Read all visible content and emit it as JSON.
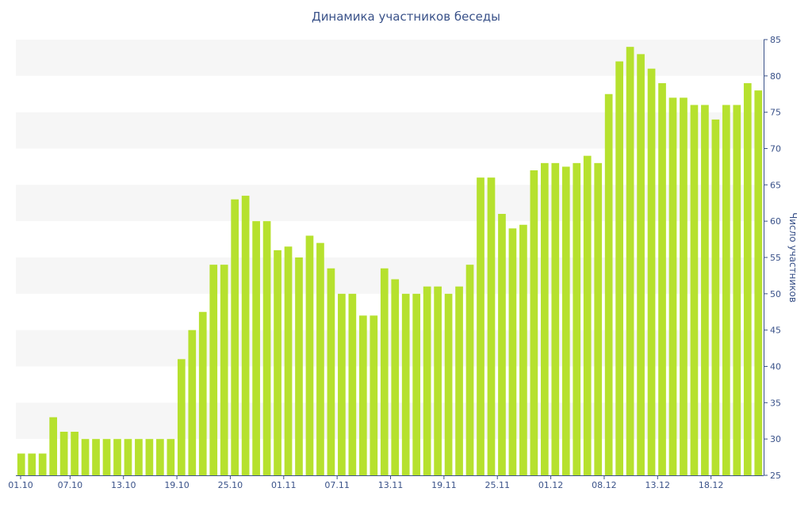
{
  "colors": {
    "bar": "#b6e12e",
    "band": "#f6f6f6",
    "axis": "#3a5289",
    "text": "#3a5289"
  },
  "chart_data": {
    "type": "bar",
    "title": "Динамика участников беседы",
    "xlabel": "",
    "ylabel": "Число участников",
    "ylim": [
      25,
      85
    ],
    "y_ticks": [
      25,
      30,
      35,
      40,
      45,
      50,
      55,
      60,
      65,
      70,
      75,
      80,
      85
    ],
    "y_axis_side": "right",
    "grid": "alternating horizontal bands",
    "x_tick_labels": [
      "01.10",
      "07.10",
      "13.10",
      "19.10",
      "25.10",
      "01.11",
      "07.11",
      "13.11",
      "19.11",
      "25.11",
      "01.12",
      "08.12",
      "13.12",
      "18.12"
    ],
    "x_tick_positions": [
      0,
      5,
      10,
      15,
      20,
      25,
      30,
      35,
      40,
      45,
      50,
      55,
      60,
      65
    ],
    "values": [
      28,
      28,
      28,
      33,
      31,
      31,
      30,
      30,
      30,
      30,
      30,
      30,
      30,
      30,
      30,
      41,
      45,
      47.5,
      54,
      54,
      63,
      63.5,
      60,
      60,
      56,
      56.5,
      55,
      58,
      57,
      53.5,
      50,
      50,
      47,
      47,
      53.5,
      52,
      50,
      50,
      51,
      51,
      50,
      51,
      54,
      66,
      66,
      61,
      59,
      59.5,
      67,
      68,
      68,
      67.5,
      68,
      69,
      68,
      77.5,
      82,
      84,
      83,
      81,
      79,
      77,
      77,
      76,
      76,
      74,
      76,
      76,
      79,
      78
    ]
  }
}
